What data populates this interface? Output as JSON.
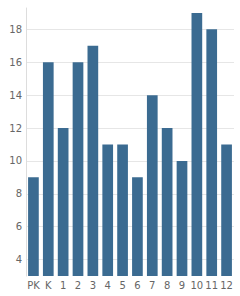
{
  "chart_data": {
    "type": "bar",
    "categories": [
      "PK",
      "K",
      "1",
      "2",
      "3",
      "4",
      "5",
      "6",
      "7",
      "8",
      "9",
      "10",
      "11",
      "12"
    ],
    "values": [
      9,
      16,
      12,
      16,
      17,
      11,
      11,
      9,
      14,
      12,
      10,
      19,
      18,
      11
    ],
    "color": "#3b6b91",
    "ylim": [
      3,
      19.3
    ],
    "yticks": [
      4,
      6,
      8,
      10,
      12,
      14,
      16,
      18
    ],
    "grid": true
  }
}
